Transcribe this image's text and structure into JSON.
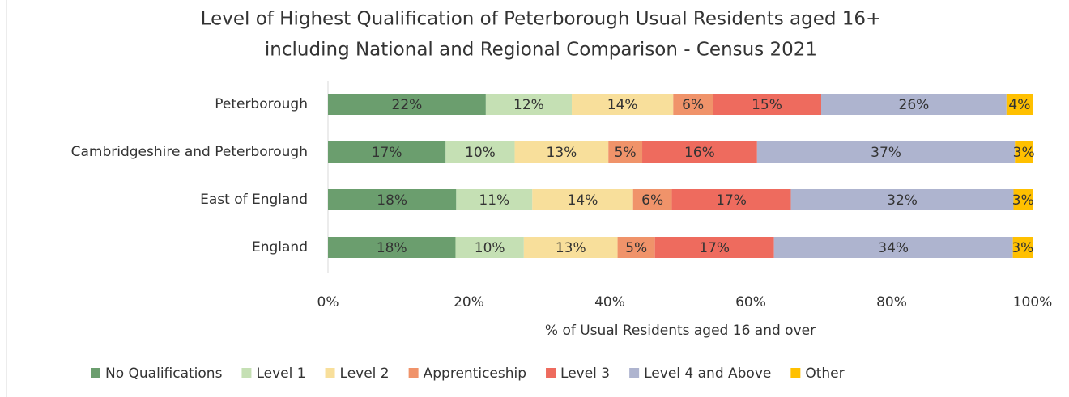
{
  "chart_data": {
    "type": "stacked_bar_horizontal",
    "title": [
      "Level of Highest Qualification of Peterborough Usual Residents aged 16+",
      "including National and Regional Comparison - Census 2021"
    ],
    "categories": [
      "Peterborough",
      "Cambridgeshire and Peterborough",
      "East of England",
      "England"
    ],
    "series": [
      {
        "name": "No Qualifications",
        "color": "#6b9e6e",
        "values": [
          22.4,
          16.7,
          18.2,
          18.1
        ],
        "value_labels": [
          "22%",
          "17%",
          "18%",
          "18%"
        ]
      },
      {
        "name": "Level 1",
        "color": "#c5e0b4",
        "values": [
          12.2,
          9.8,
          10.8,
          9.7
        ],
        "value_labels": [
          "12%",
          "10%",
          "11%",
          "10%"
        ]
      },
      {
        "name": "Level 2",
        "color": "#f8df9b",
        "values": [
          14.4,
          13.3,
          14.3,
          13.3
        ],
        "value_labels": [
          "14%",
          "13%",
          "14%",
          "13%"
        ]
      },
      {
        "name": "Apprenticeship",
        "color": "#f0936a",
        "values": [
          5.6,
          4.8,
          5.5,
          5.3
        ],
        "value_labels": [
          "6%",
          "5%",
          "6%",
          "5%"
        ]
      },
      {
        "name": "Level 3",
        "color": "#ee6b5e",
        "values": [
          15.4,
          16.3,
          16.9,
          16.9
        ],
        "value_labels": [
          "15%",
          "16%",
          "17%",
          "17%"
        ]
      },
      {
        "name": "Level 4 and Above",
        "color": "#aeb4cf",
        "values": [
          26.3,
          36.6,
          31.6,
          33.9
        ],
        "value_labels": [
          "26%",
          "37%",
          "32%",
          "34%"
        ]
      },
      {
        "name": "Other",
        "color": "#ffc000",
        "values": [
          3.7,
          2.5,
          2.7,
          2.8
        ],
        "value_labels": [
          "4%",
          "3%",
          "3%",
          "3%"
        ]
      }
    ],
    "xlabel": "% of Usual Residents aged 16 and over",
    "xlim": [
      0,
      100
    ],
    "xticks": [
      {
        "value": 0,
        "label": "0%"
      },
      {
        "value": 20,
        "label": "20%"
      },
      {
        "value": 40,
        "label": "40%"
      },
      {
        "value": 60,
        "label": "60%"
      },
      {
        "value": 80,
        "label": "80%"
      },
      {
        "value": 100,
        "label": "100%"
      }
    ],
    "legend": "bottom"
  }
}
